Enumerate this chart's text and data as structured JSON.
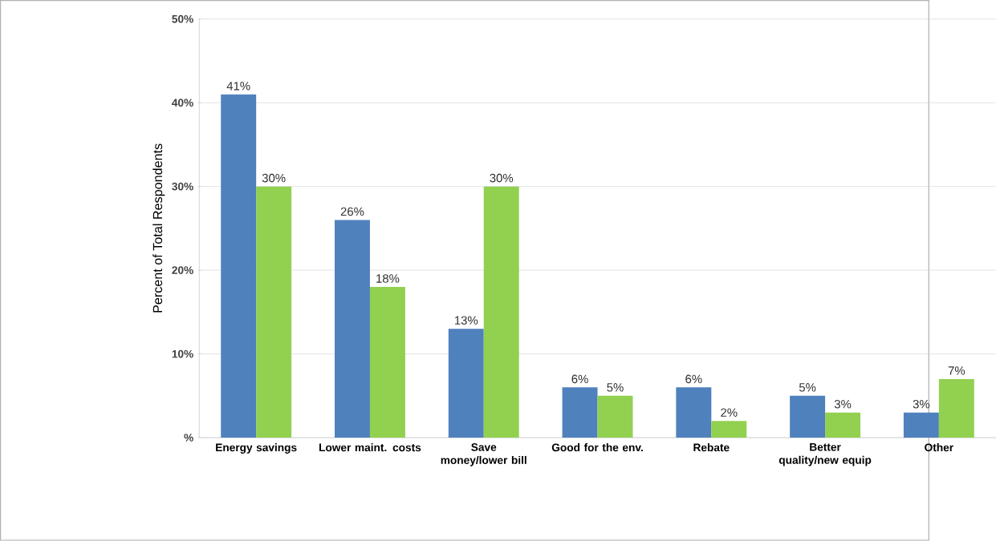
{
  "chart_data": {
    "type": "bar",
    "ylabel": "Percent of Total Respondents",
    "categories": [
      "Energy savings",
      "Lower maint. costs",
      "Save money/lower bill",
      "Good for the env.",
      "Rebate",
      "Better quality/new equip",
      "Other"
    ],
    "series": [
      {
        "color": "#4f81bd",
        "values": [
          41,
          26,
          13,
          6,
          6,
          5,
          3
        ],
        "value_labels": [
          "41%",
          "26%",
          "13%",
          "6%",
          "6%",
          "5%",
          "3%"
        ]
      },
      {
        "color": "#92d050",
        "values": [
          30,
          18,
          30,
          5,
          2,
          3,
          7
        ],
        "value_labels": [
          "30%",
          "18%",
          "30%",
          "5%",
          "2%",
          "3%",
          "7%"
        ]
      }
    ],
    "ylim": [
      0,
      50
    ],
    "yticks": [
      {
        "value": 0,
        "label": "%"
      },
      {
        "value": 10,
        "label": "10%"
      },
      {
        "value": 20,
        "label": "20%"
      },
      {
        "value": 30,
        "label": "30%"
      },
      {
        "value": 40,
        "label": "40%"
      },
      {
        "value": 50,
        "label": "50%"
      }
    ],
    "grid": "y"
  }
}
